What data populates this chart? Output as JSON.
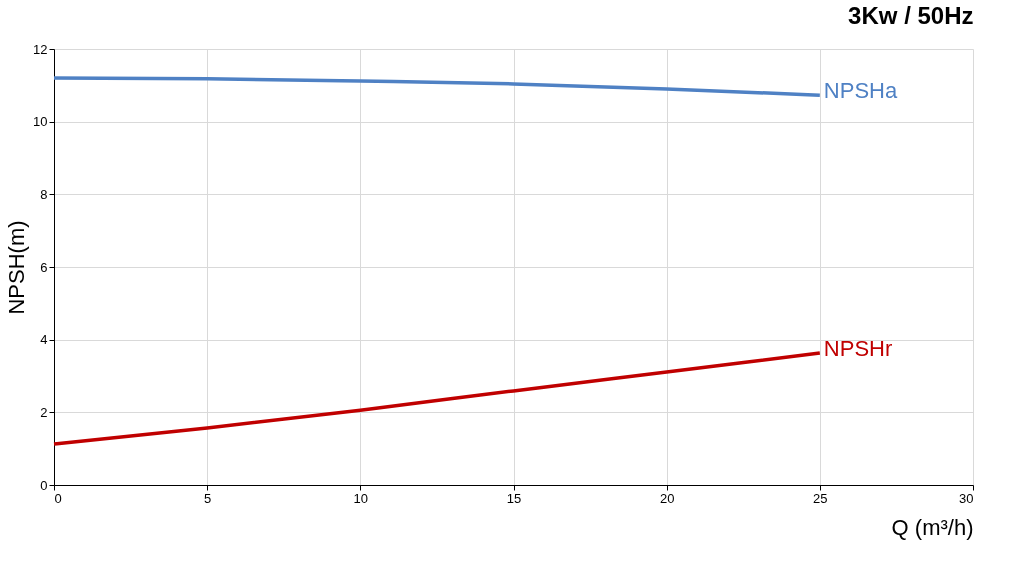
{
  "chart_data": {
    "type": "line",
    "title": "3Kw / 50Hz",
    "xlabel": "Q (m³/h)",
    "ylabel": "NPSH(m)",
    "x": [
      0,
      5,
      10,
      15,
      20,
      25
    ],
    "series": [
      {
        "name": "NPSHa",
        "color": "#4f81c4",
        "values": [
          11.2,
          11.18,
          11.12,
          11.04,
          10.9,
          10.73
        ]
      },
      {
        "name": "NPSHr",
        "color": "#c00000",
        "values": [
          1.13,
          1.57,
          2.06,
          2.59,
          3.11,
          3.63
        ]
      }
    ],
    "xlim": [
      0,
      30
    ],
    "xticks": [
      0,
      5,
      10,
      15,
      20,
      25,
      30
    ],
    "ylim": [
      0,
      12
    ],
    "yticks": [
      0,
      2,
      4,
      6,
      8,
      10,
      12
    ],
    "grid": true,
    "marker": "none",
    "line_style": "solid"
  }
}
